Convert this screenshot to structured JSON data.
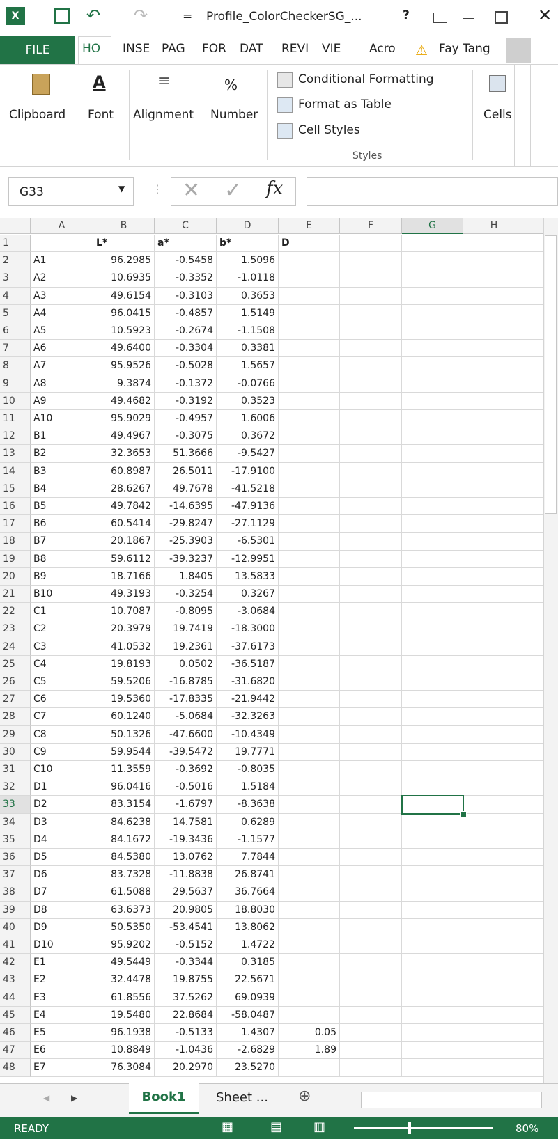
{
  "title_bar": {
    "title": "Profile_ColorCheckerSG_..."
  },
  "tabs": {
    "file": "FILE",
    "items": [
      "HO",
      "INSE",
      "PAG",
      "FOR",
      "DAT",
      "REVI",
      "VIE",
      "Acro"
    ],
    "user": "Fay Tang"
  },
  "ribbon": {
    "clipboard": "Clipboard",
    "font": "Font",
    "alignment": "Alignment",
    "number": "Number",
    "number_icon": "%",
    "conditional_formatting": "Conditional Formatting",
    "format_as_table": "Format as Table",
    "cell_styles": "Cell Styles",
    "styles": "Styles",
    "cells": "Cells"
  },
  "formula_bar": {
    "name_box": "G33",
    "fx": "fx"
  },
  "column_headers": [
    "A",
    "B",
    "C",
    "D",
    "E",
    "F",
    "G",
    "H"
  ],
  "row_numbers": [
    1,
    2,
    3,
    4,
    5,
    6,
    7,
    8,
    9,
    10,
    11,
    12,
    13,
    14,
    15,
    16,
    17,
    18,
    19,
    20,
    21,
    22,
    23,
    24,
    25,
    26,
    27,
    28,
    29,
    30,
    31,
    32,
    33,
    34,
    35,
    36,
    37,
    38,
    39,
    40,
    41,
    42,
    43,
    44,
    45,
    46,
    47,
    48
  ],
  "table": {
    "rows": [
      [
        null,
        "L*",
        "a*",
        "b*",
        "D"
      ],
      [
        "A1",
        "96.2985",
        "-0.5458",
        "1.5096"
      ],
      [
        "A2",
        "10.6935",
        "-0.3352",
        "-1.0118"
      ],
      [
        "A3",
        "49.6154",
        "-0.3103",
        "0.3653"
      ],
      [
        "A4",
        "96.0415",
        "-0.4857",
        "1.5149"
      ],
      [
        "A5",
        "10.5923",
        "-0.2674",
        "-1.1508"
      ],
      [
        "A6",
        "49.6400",
        "-0.3304",
        "0.3381"
      ],
      [
        "A7",
        "95.9526",
        "-0.5028",
        "1.5657"
      ],
      [
        "A8",
        "9.3874",
        "-0.1372",
        "-0.0766"
      ],
      [
        "A9",
        "49.4682",
        "-0.3192",
        "0.3523"
      ],
      [
        "A10",
        "95.9029",
        "-0.4957",
        "1.6006"
      ],
      [
        "B1",
        "49.4967",
        "-0.3075",
        "0.3672"
      ],
      [
        "B2",
        "32.3653",
        "51.3666",
        "-9.5427"
      ],
      [
        "B3",
        "60.8987",
        "26.5011",
        "-17.9100"
      ],
      [
        "B4",
        "28.6267",
        "49.7678",
        "-41.5218"
      ],
      [
        "B5",
        "49.7842",
        "-14.6395",
        "-47.9136"
      ],
      [
        "B6",
        "60.5414",
        "-29.8247",
        "-27.1129"
      ],
      [
        "B7",
        "20.1867",
        "-25.3903",
        "-6.5301"
      ],
      [
        "B8",
        "59.6112",
        "-39.3237",
        "-12.9951"
      ],
      [
        "B9",
        "18.7166",
        "1.8405",
        "13.5833"
      ],
      [
        "B10",
        "49.3193",
        "-0.3254",
        "0.3267"
      ],
      [
        "C1",
        "10.7087",
        "-0.8095",
        "-3.0684"
      ],
      [
        "C2",
        "20.3979",
        "19.7419",
        "-18.3000"
      ],
      [
        "C3",
        "41.0532",
        "19.2361",
        "-37.6173"
      ],
      [
        "C4",
        "19.8193",
        "0.0502",
        "-36.5187"
      ],
      [
        "C5",
        "59.5206",
        "-16.8785",
        "-31.6820"
      ],
      [
        "C6",
        "19.5360",
        "-17.8335",
        "-21.9442"
      ],
      [
        "C7",
        "60.1240",
        "-5.0684",
        "-32.3263"
      ],
      [
        "C8",
        "50.1326",
        "-47.6600",
        "-10.4349"
      ],
      [
        "C9",
        "59.9544",
        "-39.5472",
        "19.7771"
      ],
      [
        "C10",
        "11.3559",
        "-0.3692",
        "-0.8035"
      ],
      [
        "D1",
        "96.0416",
        "-0.5016",
        "1.5184"
      ],
      [
        "D2",
        "83.3154",
        "-1.6797",
        "-8.3638"
      ],
      [
        "D3",
        "84.6238",
        "14.7581",
        "0.6289"
      ],
      [
        "D4",
        "84.1672",
        "-19.3436",
        "-1.1577"
      ],
      [
        "D5",
        "84.5380",
        "13.0762",
        "7.7844"
      ],
      [
        "D6",
        "83.7328",
        "-11.8838",
        "26.8741"
      ],
      [
        "D7",
        "61.5088",
        "29.5637",
        "36.7664"
      ],
      [
        "D8",
        "63.6373",
        "20.9805",
        "18.8030"
      ],
      [
        "D9",
        "50.5350",
        "-53.4541",
        "13.8062"
      ],
      [
        "D10",
        "95.9202",
        "-0.5152",
        "1.4722"
      ],
      [
        "E1",
        "49.5449",
        "-0.3344",
        "0.3185"
      ],
      [
        "E2",
        "32.4478",
        "19.8755",
        "22.5671"
      ],
      [
        "E3",
        "61.8556",
        "37.5262",
        "69.0939"
      ],
      [
        "E4",
        "19.5480",
        "22.8684",
        "-58.0487"
      ],
      [
        "E5",
        "96.1938",
        "-0.5133",
        "1.4307",
        "0.05"
      ],
      [
        "E6",
        "10.8849",
        "-1.0436",
        "-2.6829",
        "1.89"
      ],
      [
        "E7",
        "76.3084",
        "20.2970",
        "23.5270"
      ]
    ]
  },
  "sheet_tabs": {
    "active": "Book1",
    "other": "Sheet ..."
  },
  "status_bar": {
    "status": "READY",
    "zoom": "80%"
  }
}
